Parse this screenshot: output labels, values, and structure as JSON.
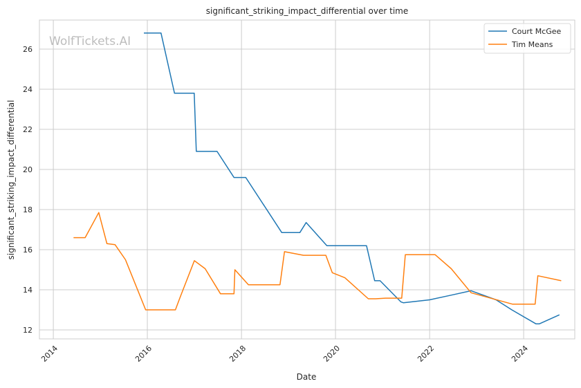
{
  "chart_data": {
    "type": "line",
    "title": "significant_striking_impact_differential over time",
    "xlabel": "Date",
    "ylabel": "significant_striking_impact_differential",
    "watermark": "WolfTickets.AI",
    "xlim": [
      "2013-09-15",
      "2025-02-01"
    ],
    "ylim": [
      11.55,
      27.45
    ],
    "x_ticks": [
      "2014",
      "2016",
      "2018",
      "2020",
      "2022",
      "2024"
    ],
    "y_ticks": [
      12,
      14,
      16,
      18,
      20,
      22,
      24,
      26
    ],
    "grid": true,
    "legend_position": "top-right",
    "series": [
      {
        "name": "Court McGee",
        "color": "#1f77b4",
        "points": [
          [
            "2015-12-05",
            26.8
          ],
          [
            "2016-04-16",
            26.8
          ],
          [
            "2016-07-30",
            23.8
          ],
          [
            "2016-12-30",
            23.8
          ],
          [
            "2017-01-15",
            20.9
          ],
          [
            "2017-06-25",
            20.9
          ],
          [
            "2017-11-04",
            19.6
          ],
          [
            "2018-02-03",
            19.6
          ],
          [
            "2018-11-10",
            16.85
          ],
          [
            "2019-03-30",
            16.85
          ],
          [
            "2019-05-18",
            17.35
          ],
          [
            "2019-10-26",
            16.2
          ],
          [
            "2020-08-29",
            16.2
          ],
          [
            "2020-10-31",
            14.45
          ],
          [
            "2020-12-12",
            14.45
          ],
          [
            "2021-05-22",
            13.4
          ],
          [
            "2021-06-12",
            13.35
          ],
          [
            "2022-01-01",
            13.5
          ],
          [
            "2022-07-01",
            13.75
          ],
          [
            "2022-11-19",
            13.95
          ],
          [
            "2023-06-01",
            13.5
          ],
          [
            "2023-10-01",
            13.0
          ],
          [
            "2024-04-06",
            12.3
          ],
          [
            "2024-05-01",
            12.3
          ],
          [
            "2024-10-05",
            12.75
          ]
        ]
      },
      {
        "name": "Tim Means",
        "color": "#ff7f0e",
        "points": [
          [
            "2014-06-07",
            16.6
          ],
          [
            "2014-09-05",
            16.6
          ],
          [
            "2014-12-20",
            17.85
          ],
          [
            "2015-02-21",
            16.3
          ],
          [
            "2015-04-25",
            16.25
          ],
          [
            "2015-07-15",
            15.5
          ],
          [
            "2015-12-19",
            13.0
          ],
          [
            "2016-08-06",
            13.0
          ],
          [
            "2016-09-10",
            13.6
          ],
          [
            "2016-12-31",
            15.45
          ],
          [
            "2017-03-25",
            15.05
          ],
          [
            "2017-07-22",
            13.8
          ],
          [
            "2017-11-04",
            13.8
          ],
          [
            "2017-11-11",
            15.0
          ],
          [
            "2018-02-24",
            14.25
          ],
          [
            "2018-10-27",
            14.25
          ],
          [
            "2018-12-01",
            15.9
          ],
          [
            "2019-04-27",
            15.72
          ],
          [
            "2019-10-18",
            15.72
          ],
          [
            "2019-12-07",
            14.85
          ],
          [
            "2020-03-14",
            14.6
          ],
          [
            "2020-09-12",
            13.55
          ],
          [
            "2020-11-07",
            13.55
          ],
          [
            "2021-01-23",
            13.58
          ],
          [
            "2021-05-29",
            13.58
          ],
          [
            "2021-06-26",
            15.75
          ],
          [
            "2022-02-12",
            15.75
          ],
          [
            "2022-06-18",
            15.05
          ],
          [
            "2022-11-19",
            13.85
          ],
          [
            "2023-10-07",
            13.28
          ],
          [
            "2024-03-30",
            13.28
          ],
          [
            "2024-04-20",
            14.7
          ],
          [
            "2024-10-19",
            14.45
          ]
        ]
      }
    ]
  }
}
